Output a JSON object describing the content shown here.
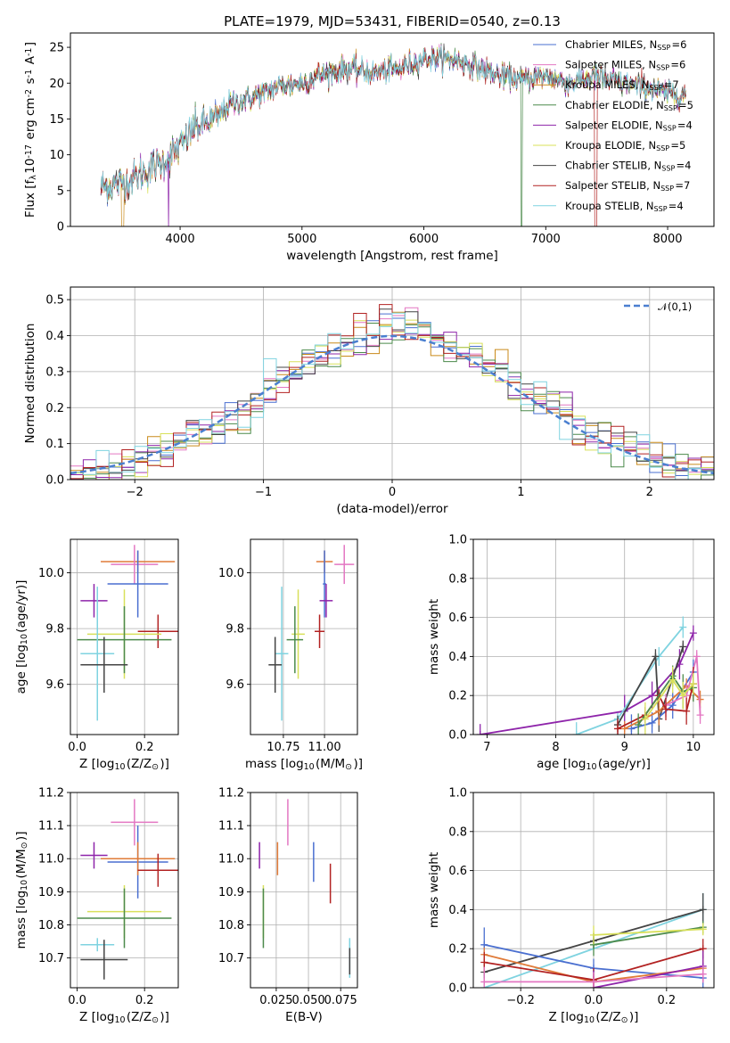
{
  "chart_data": [
    {
      "type": "line",
      "title": "PLATE=1979, MJD=53431, FIBERID=0540, z=0.13",
      "xlabel": "wavelength [Angstrom, rest frame]",
      "ylabel": "Flux [f$_\\lambda$10$^{-17}$ erg cm$^{-2}$ s$^{-1}$ A$^{-1}$]",
      "xlim": [
        3100,
        8380
      ],
      "ylim": [
        0,
        27
      ],
      "xticks": [
        4000,
        5000,
        6000,
        7000,
        8000
      ],
      "yticks": [
        0,
        5,
        10,
        15,
        20,
        25
      ],
      "grid": false,
      "legend_position": "top-right",
      "spectrum_knots": {
        "x": [
          3350,
          3500,
          3600,
          3700,
          3800,
          3900,
          4000,
          4100,
          4200,
          4300,
          4400,
          4600,
          4800,
          5000,
          5200,
          5400,
          5600,
          5800,
          6000,
          6200,
          6400,
          6600,
          6800,
          7000,
          7200,
          7400,
          7600,
          7800,
          8000,
          8150
        ],
        "y": [
          5.5,
          6.0,
          6.5,
          7.5,
          8.5,
          9.5,
          11.0,
          13.5,
          14.5,
          15.0,
          17.0,
          18.0,
          19.5,
          20.0,
          21.5,
          22.0,
          21.5,
          22.0,
          23.5,
          23.5,
          22.5,
          21.0,
          20.5,
          21.0,
          20.0,
          21.0,
          20.0,
          19.5,
          18.5,
          18.5
        ]
      },
      "series": [
        {
          "name": "Chabrier MILES, N$_{SSP}$=6",
          "color": "#4a6fd0"
        },
        {
          "name": "Salpeter MILES, N$_{SSP}$=6",
          "color": "#e377c2"
        },
        {
          "name": "Kroupa MILES, N$_{SSP}$=7",
          "color": "#c98a1a"
        },
        {
          "name": "Chabrier ELODIE, N$_{SSP}$=5",
          "color": "#4b8a4b"
        },
        {
          "name": "Salpeter ELODIE, N$_{SSP}$=4",
          "color": "#8e24aa"
        },
        {
          "name": "Kroupa ELODIE, N$_{SSP}$=5",
          "color": "#d8e05a"
        },
        {
          "name": "Chabrier STELIB, N$_{SSP}$=4",
          "color": "#444444"
        },
        {
          "name": "Salpeter STELIB, N$_{SSP}$=7",
          "color": "#b22222"
        },
        {
          "name": "Kroupa STELIB, N$_{SSP}$=4",
          "color": "#7fd3e0"
        }
      ]
    },
    {
      "type": "line",
      "xlabel": "(data-model)/error",
      "ylabel": "Normed distribution",
      "xlim": [
        -2.5,
        2.5
      ],
      "ylim": [
        0,
        0.535
      ],
      "xticks": [
        -2,
        -1,
        0,
        1,
        2
      ],
      "yticks": [
        0.0,
        0.1,
        0.2,
        0.3,
        0.4,
        0.5
      ],
      "grid": true,
      "legend_position": "top-right",
      "reference_curve": {
        "name": "$\\mathcal{N}(0,1)$",
        "mean": 0,
        "sigma": 1,
        "color": "#4a7fd0",
        "style": "dashed"
      },
      "histogram": {
        "bin_width": 0.1,
        "peak": 0.51,
        "series_count": 9
      }
    },
    {
      "type": "scatter",
      "xlabel": "Z [log$_{10}$(Z/Z$_\\odot$)]",
      "ylabel": "age  [log$_{10}$(age/yr)]",
      "xlim": [
        -0.02,
        0.3
      ],
      "ylim": [
        9.42,
        10.12
      ],
      "xticks": [
        0.0,
        0.2
      ],
      "yticks": [
        9.6,
        9.8,
        10.0
      ],
      "grid": true,
      "points": [
        {
          "x": 0.18,
          "y": 10.04,
          "xerr": 0.11,
          "yerr": 0.04,
          "color": "#e07b39"
        },
        {
          "x": 0.17,
          "y": 10.03,
          "xerr": 0.07,
          "yerr": 0.07,
          "color": "#e377c2"
        },
        {
          "x": 0.18,
          "y": 9.96,
          "xerr": 0.09,
          "yerr": 0.12,
          "color": "#4a6fd0"
        },
        {
          "x": 0.05,
          "y": 9.9,
          "xerr": 0.04,
          "yerr": 0.06,
          "color": "#8e24aa"
        },
        {
          "x": 0.24,
          "y": 9.79,
          "xerr": 0.06,
          "yerr": 0.06,
          "color": "#b22222"
        },
        {
          "x": 0.14,
          "y": 9.78,
          "xerr": 0.11,
          "yerr": 0.16,
          "color": "#d8e05a"
        },
        {
          "x": 0.14,
          "y": 9.76,
          "xerr": 0.14,
          "yerr": 0.12,
          "color": "#4b8a4b"
        },
        {
          "x": 0.06,
          "y": 9.71,
          "xerr": 0.05,
          "yerr": 0.24,
          "color": "#7fd3e0"
        },
        {
          "x": 0.08,
          "y": 9.67,
          "xerr": 0.07,
          "yerr": 0.1,
          "color": "#444444"
        }
      ]
    },
    {
      "type": "scatter",
      "xlabel": "mass [log$_{10}$(M/M$_\\odot$)]",
      "xlim": [
        10.55,
        11.2
      ],
      "ylim": [
        9.42,
        10.12
      ],
      "xticks": [
        10.75,
        11.0
      ],
      "yticks": [
        9.6,
        9.8,
        10.0
      ],
      "grid": true,
      "points": [
        {
          "x": 11.0,
          "y": 10.04,
          "xerr": 0.05,
          "yerr": 0.04,
          "color": "#e07b39"
        },
        {
          "x": 11.12,
          "y": 10.03,
          "xerr": 0.06,
          "yerr": 0.07,
          "color": "#e377c2"
        },
        {
          "x": 11.0,
          "y": 9.96,
          "xerr": 0.01,
          "yerr": 0.12,
          "color": "#4a6fd0"
        },
        {
          "x": 11.01,
          "y": 9.9,
          "xerr": 0.04,
          "yerr": 0.06,
          "color": "#8e24aa"
        },
        {
          "x": 10.97,
          "y": 9.79,
          "xerr": 0.03,
          "yerr": 0.06,
          "color": "#b22222"
        },
        {
          "x": 10.84,
          "y": 9.78,
          "xerr": 0.04,
          "yerr": 0.16,
          "color": "#d8e05a"
        },
        {
          "x": 10.82,
          "y": 9.76,
          "xerr": 0.05,
          "yerr": 0.12,
          "color": "#4b8a4b"
        },
        {
          "x": 10.74,
          "y": 9.71,
          "xerr": 0.04,
          "yerr": 0.24,
          "color": "#7fd3e0"
        },
        {
          "x": 10.7,
          "y": 9.67,
          "xerr": 0.04,
          "yerr": 0.1,
          "color": "#444444"
        }
      ]
    },
    {
      "type": "line",
      "xlabel": "age  [log$_{10}$(age/yr)]",
      "ylabel": "mass weight",
      "xlim": [
        6.8,
        10.3
      ],
      "ylim": [
        0,
        1.0
      ],
      "xticks": [
        7,
        8,
        9,
        10
      ],
      "yticks": [
        0.0,
        0.2,
        0.4,
        0.6,
        0.8,
        1.0
      ],
      "grid": true,
      "series": [
        {
          "color": "#8e24aa",
          "x": [
            6.9,
            9.0,
            9.4,
            9.8,
            10.0
          ],
          "y": [
            0.0,
            0.12,
            0.2,
            0.36,
            0.52
          ]
        },
        {
          "color": "#7fd3e0",
          "x": [
            8.3,
            8.9,
            9.5,
            9.85
          ],
          "y": [
            0.0,
            0.08,
            0.4,
            0.55
          ]
        },
        {
          "color": "#444444",
          "x": [
            8.9,
            9.45,
            9.5,
            9.85
          ],
          "y": [
            0.05,
            0.4,
            0.08,
            0.45
          ]
        },
        {
          "color": "#4a6fd0",
          "x": [
            9.1,
            9.4,
            9.7,
            10.0
          ],
          "y": [
            0.03,
            0.06,
            0.15,
            0.32
          ]
        },
        {
          "color": "#e07b39",
          "x": [
            9.0,
            9.5,
            9.9,
            10.1
          ],
          "y": [
            0.03,
            0.12,
            0.25,
            0.18
          ]
        },
        {
          "color": "#e377c2",
          "x": [
            9.6,
            9.9,
            10.05,
            10.1
          ],
          "y": [
            0.15,
            0.2,
            0.4,
            0.1
          ]
        },
        {
          "color": "#b22222",
          "x": [
            8.9,
            9.3,
            9.5,
            9.6,
            9.9,
            10.0
          ],
          "y": [
            0.03,
            0.1,
            0.2,
            0.13,
            0.12,
            0.26
          ]
        },
        {
          "color": "#4b8a4b",
          "x": [
            9.2,
            9.7,
            9.85,
            10.0
          ],
          "y": [
            0.05,
            0.3,
            0.22,
            0.24
          ]
        },
        {
          "color": "#d8e05a",
          "x": [
            9.3,
            9.7,
            9.85,
            10.0
          ],
          "y": [
            0.08,
            0.28,
            0.2,
            0.26
          ]
        }
      ]
    },
    {
      "type": "scatter",
      "xlabel": "Z [log$_{10}$(Z/Z$_\\odot$)]",
      "ylabel": "mass [log$_{10}$(M/M$_\\odot$)]",
      "xlim": [
        -0.02,
        0.3
      ],
      "ylim": [
        10.61,
        11.2
      ],
      "xticks": [
        0.0,
        0.2
      ],
      "yticks": [
        10.7,
        10.8,
        10.9,
        11.0,
        11.1,
        11.2
      ],
      "grid": true,
      "points": [
        {
          "x": 0.17,
          "y": 11.11,
          "xerr": 0.07,
          "yerr": 0.07,
          "color": "#e377c2"
        },
        {
          "x": 0.05,
          "y": 11.01,
          "xerr": 0.04,
          "yerr": 0.04,
          "color": "#8e24aa"
        },
        {
          "x": 0.18,
          "y": 10.99,
          "xerr": 0.09,
          "yerr": 0.11,
          "color": "#4a6fd0"
        },
        {
          "x": 0.18,
          "y": 11.0,
          "xerr": 0.11,
          "yerr": 0.05,
          "color": "#e07b39"
        },
        {
          "x": 0.24,
          "y": 10.965,
          "xerr": 0.06,
          "yerr": 0.05,
          "color": "#b22222"
        },
        {
          "x": 0.14,
          "y": 10.84,
          "xerr": 0.11,
          "yerr": 0.08,
          "color": "#d8e05a"
        },
        {
          "x": 0.14,
          "y": 10.82,
          "xerr": 0.14,
          "yerr": 0.09,
          "color": "#4b8a4b"
        },
        {
          "x": 0.06,
          "y": 10.74,
          "xerr": 0.05,
          "yerr": 0.02,
          "color": "#7fd3e0"
        },
        {
          "x": 0.08,
          "y": 10.695,
          "xerr": 0.07,
          "yerr": 0.06,
          "color": "#444444"
        }
      ]
    },
    {
      "type": "scatter",
      "xlabel": "E(B-V)",
      "xlim": [
        0.005,
        0.088
      ],
      "ylim": [
        10.61,
        11.2
      ],
      "xticks": [
        0.025,
        0.05,
        0.075
      ],
      "yticks": [
        10.7,
        10.8,
        10.9,
        11.0,
        11.1,
        11.2
      ],
      "grid": true,
      "points": [
        {
          "x": 0.034,
          "y": 11.11,
          "yerr": 0.07,
          "color": "#e377c2"
        },
        {
          "x": 0.012,
          "y": 11.01,
          "yerr": 0.04,
          "color": "#8e24aa"
        },
        {
          "x": 0.054,
          "y": 10.99,
          "yerr": 0.06,
          "color": "#4a6fd0"
        },
        {
          "x": 0.026,
          "y": 11.0,
          "yerr": 0.05,
          "color": "#e07b39"
        },
        {
          "x": 0.067,
          "y": 10.925,
          "yerr": 0.06,
          "color": "#b22222"
        },
        {
          "x": 0.015,
          "y": 10.84,
          "yerr": 0.08,
          "color": "#d8e05a"
        },
        {
          "x": 0.015,
          "y": 10.82,
          "yerr": 0.09,
          "color": "#4b8a4b"
        },
        {
          "x": 0.082,
          "y": 10.7,
          "yerr": 0.06,
          "color": "#7fd3e0"
        },
        {
          "x": 0.082,
          "y": 10.69,
          "yerr": 0.04,
          "color": "#444444"
        }
      ]
    },
    {
      "type": "line",
      "xlabel": "Z [log$_{10}$(Z/Z$_\\odot$)]",
      "ylabel": "mass weight",
      "xlim": [
        -0.33,
        0.33
      ],
      "ylim": [
        0,
        1.0
      ],
      "xticks": [
        -0.2,
        0.0,
        0.2
      ],
      "yticks": [
        0.0,
        0.2,
        0.4,
        0.6,
        0.8,
        1.0
      ],
      "grid": true,
      "series": [
        {
          "color": "#7fd3e0",
          "x": [
            -0.3,
            0.3
          ],
          "y": [
            0.0,
            0.4
          ]
        },
        {
          "color": "#444444",
          "x": [
            -0.3,
            0.0,
            0.3
          ],
          "y": [
            0.08,
            0.24,
            0.4
          ]
        },
        {
          "color": "#4a6fd0",
          "x": [
            -0.3,
            0.0,
            0.3
          ],
          "y": [
            0.22,
            0.1,
            0.05
          ]
        },
        {
          "color": "#e07b39",
          "x": [
            -0.3,
            0.0,
            0.3
          ],
          "y": [
            0.17,
            0.03,
            0.1
          ]
        },
        {
          "color": "#b22222",
          "x": [
            -0.3,
            0.0,
            0.3
          ],
          "y": [
            0.13,
            0.04,
            0.2
          ]
        },
        {
          "color": "#8e24aa",
          "x": [
            0.0,
            0.3
          ],
          "y": [
            0.0,
            0.11
          ]
        },
        {
          "color": "#e377c2",
          "x": [
            -0.3,
            0.0,
            0.3
          ],
          "y": [
            0.03,
            0.03,
            0.07
          ]
        },
        {
          "color": "#4b8a4b",
          "x": [
            0.0,
            0.3
          ],
          "y": [
            0.22,
            0.31
          ]
        },
        {
          "color": "#d8e05a",
          "x": [
            0.0,
            0.3
          ],
          "y": [
            0.27,
            0.3
          ]
        }
      ]
    }
  ]
}
